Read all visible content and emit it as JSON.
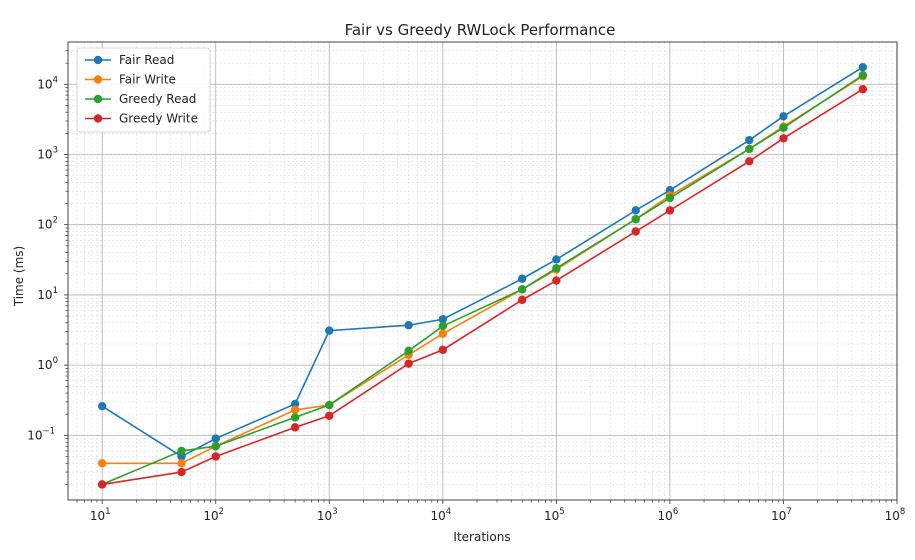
{
  "chart_data": {
    "type": "line",
    "title": "Fair vs Greedy RWLock Performance",
    "xlabel": "Iterations",
    "ylabel": "Time (ms)",
    "x_scale": "log",
    "y_scale": "log",
    "xlim": [
      5,
      100000000
    ],
    "ylim": [
      0.012,
      40000
    ],
    "grid": true,
    "legend_position": "top-left",
    "x_ticks": [
      {
        "value": 10,
        "base": "10",
        "exp": "1"
      },
      {
        "value": 100,
        "base": "10",
        "exp": "2"
      },
      {
        "value": 1000,
        "base": "10",
        "exp": "3"
      },
      {
        "value": 10000,
        "base": "10",
        "exp": "4"
      },
      {
        "value": 100000,
        "base": "10",
        "exp": "5"
      },
      {
        "value": 1000000,
        "base": "10",
        "exp": "6"
      },
      {
        "value": 10000000,
        "base": "10",
        "exp": "7"
      },
      {
        "value": 100000000,
        "base": "10",
        "exp": "8"
      }
    ],
    "y_ticks": [
      {
        "value": 0.1,
        "base": "10",
        "exp": "−1"
      },
      {
        "value": 1,
        "base": "10",
        "exp": "0"
      },
      {
        "value": 10,
        "base": "10",
        "exp": "1"
      },
      {
        "value": 100,
        "base": "10",
        "exp": "2"
      },
      {
        "value": 1000,
        "base": "10",
        "exp": "3"
      },
      {
        "value": 10000,
        "base": "10",
        "exp": "4"
      }
    ],
    "x": [
      10,
      50,
      100,
      500,
      1000,
      5000,
      10000,
      50000,
      100000,
      500000,
      1000000,
      5000000,
      10000000,
      50000000
    ],
    "series": [
      {
        "name": "Fair Read",
        "color": "#1f77b4",
        "values": [
          0.26,
          0.05,
          0.09,
          0.28,
          3.1,
          3.7,
          4.5,
          17,
          32,
          160,
          310,
          1600,
          3500,
          17500
        ]
      },
      {
        "name": "Fair Write",
        "color": "#ff7f0e",
        "values": [
          0.04,
          0.04,
          0.07,
          0.23,
          0.27,
          1.4,
          2.8,
          12,
          23,
          120,
          260,
          1200,
          2500,
          13000
        ]
      },
      {
        "name": "Greedy Read",
        "color": "#2ca02c",
        "values": [
          0.02,
          0.06,
          0.07,
          0.18,
          0.27,
          1.6,
          3.6,
          12,
          24,
          120,
          240,
          1200,
          2400,
          13500
        ]
      },
      {
        "name": "Greedy Write",
        "color": "#d62728",
        "values": [
          0.02,
          0.03,
          0.05,
          0.13,
          0.19,
          1.05,
          1.65,
          8.5,
          16,
          80,
          160,
          800,
          1700,
          8500
        ]
      }
    ]
  }
}
